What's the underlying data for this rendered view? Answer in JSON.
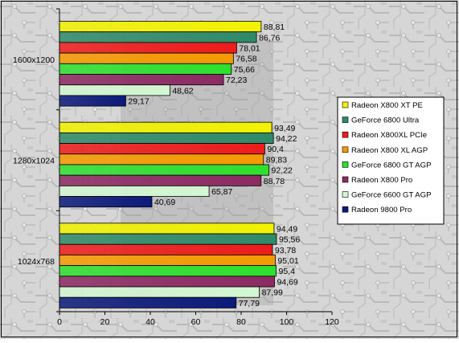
{
  "chart_data": {
    "type": "bar",
    "orientation": "horizontal",
    "categories": [
      "1600x1200",
      "1280x1024",
      "1024x768"
    ],
    "series": [
      {
        "name": "Radeon X800 XT PE",
        "color": "#f2f200",
        "values": [
          88.81,
          93.49,
          94.49
        ],
        "labels": [
          "88,81",
          "93,49",
          "94,49"
        ]
      },
      {
        "name": "GeForce 6800 Ultra",
        "color": "#2f8a68",
        "values": [
          86.76,
          94.22,
          95.56
        ],
        "labels": [
          "86,76",
          "94,22",
          "95,56"
        ]
      },
      {
        "name": "Radeon X800XL PCIe",
        "color": "#ee1c1c",
        "values": [
          78.01,
          90.4,
          93.78
        ],
        "labels": [
          "78,01",
          "90,4",
          "93,78"
        ]
      },
      {
        "name": "Radeon X800 XL AGP",
        "color": "#f59a00",
        "values": [
          76.58,
          89.83,
          95.01
        ],
        "labels": [
          "76,58",
          "89,83",
          "95,01"
        ]
      },
      {
        "name": "GeForce 6800 GT AGP",
        "color": "#2ee02e",
        "values": [
          75.66,
          92.22,
          95.4
        ],
        "labels": [
          "75,66",
          "92,22",
          "95,4"
        ]
      },
      {
        "name": "Radeon X800 Pro",
        "color": "#8c2a63",
        "values": [
          72.23,
          88.78,
          94.69
        ],
        "labels": [
          "72,23",
          "88,78",
          "94,69"
        ]
      },
      {
        "name": "GeForce 6600 GT AGP",
        "color": "#d2f7d2",
        "values": [
          48.62,
          65.87,
          87.99
        ],
        "labels": [
          "48,62",
          "65,87",
          "87,99"
        ]
      },
      {
        "name": "Radeon 9800 Pro",
        "color": "#0c1a7a",
        "values": [
          29.17,
          40.69,
          77.79
        ],
        "labels": [
          "29,17",
          "40,69",
          "77,79"
        ]
      }
    ],
    "xlim": [
      0,
      120
    ],
    "xticks": [
      "0",
      "20",
      "40",
      "60",
      "80",
      "100",
      "120"
    ],
    "legend": "right",
    "grid": false
  }
}
